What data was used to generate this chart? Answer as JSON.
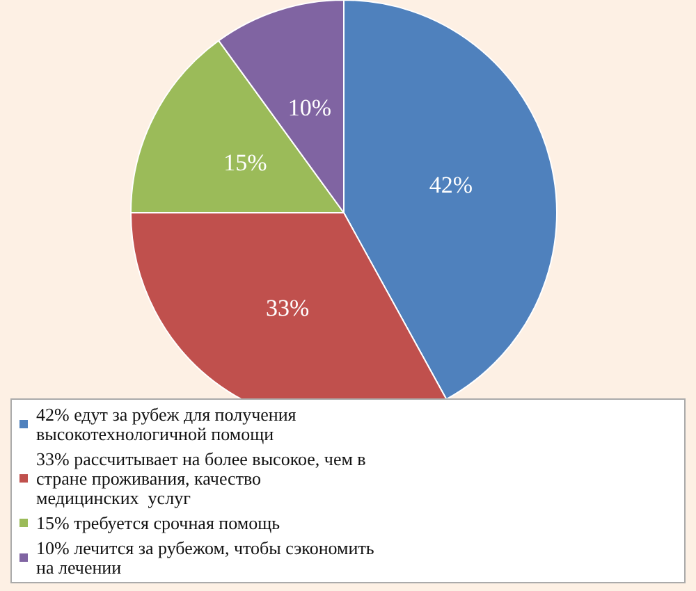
{
  "chart_data": {
    "type": "pie",
    "categories": [
      "42% едут за рубеж для получения высокотехнологичной помощи",
      "33% рассчитывает на более высокое, чем в стране проживания, качество медицинских  услуг",
      "15% требуется срочная помощь",
      "10% лечится за рубежом, чтобы сэкономить на лечении"
    ],
    "values": [
      42,
      33,
      15,
      10
    ],
    "value_labels": [
      "42%",
      "33%",
      "15%",
      "10%"
    ],
    "colors": [
      "#4f81bd",
      "#c0504d",
      "#9bbb59",
      "#8064a2"
    ],
    "legend": "bottom"
  }
}
